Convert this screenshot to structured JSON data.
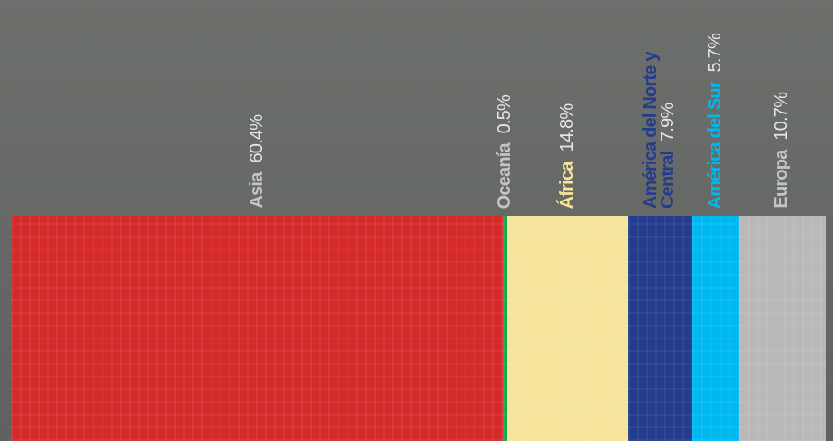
{
  "chart_data": {
    "type": "bar",
    "categories": [
      "Asia",
      "Oceanía",
      "África",
      "América del Norte y Central",
      "América del Sur",
      "Europa"
    ],
    "values": [
      60.4,
      0.5,
      14.8,
      7.9,
      5.7,
      10.7
    ],
    "value_labels": [
      "60.4%",
      "0.5%",
      "14.8%",
      "7.9%",
      "5.7%",
      "10.7%"
    ],
    "colors": [
      "#d42a2a",
      "#16a84a",
      "#f6e49a",
      "#233c8c",
      "#00b8f0",
      "#b9b9b9"
    ],
    "label_colors": [
      "#c4c4c4",
      "#c4c4c4",
      "#f6e49a",
      "#233c8c",
      "#00b8f0",
      "#c4c4c4"
    ]
  }
}
